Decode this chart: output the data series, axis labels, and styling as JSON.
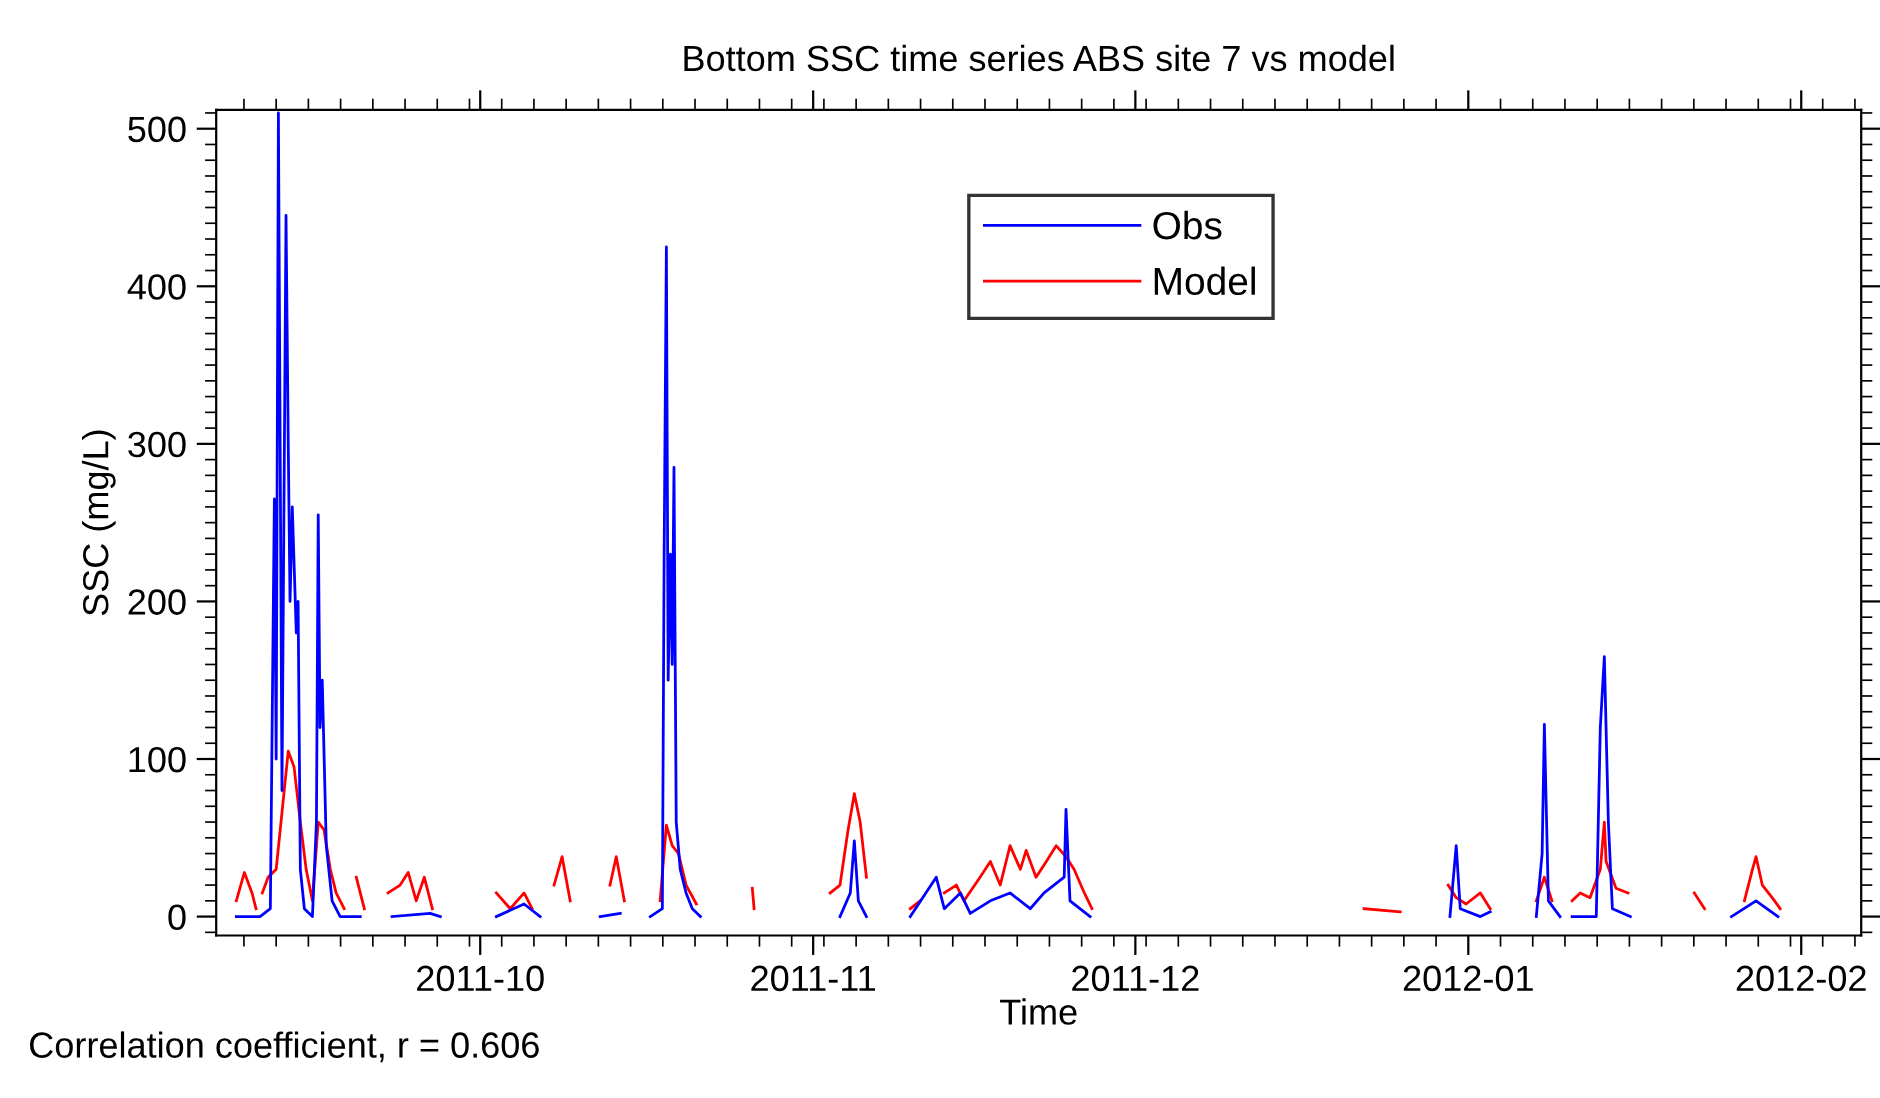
{
  "chart_data": {
    "type": "line",
    "title": "Bottom SSC time series ABS site 7 vs model",
    "xlabel": "Time",
    "ylabel": "SSC (mg/L)",
    "annotations": [
      "Correlation coefficient, r = 0.606"
    ],
    "xlim": [
      "2011-09-06T10:00",
      "2012-02-06T14:00"
    ],
    "xticks": [
      {
        "value": "2011-10-01",
        "label": "2011-10"
      },
      {
        "value": "2011-11-01",
        "label": "2011-11"
      },
      {
        "value": "2011-12-01",
        "label": "2011-12"
      },
      {
        "value": "2012-01-01",
        "label": "2012-01"
      },
      {
        "value": "2012-02-01",
        "label": "2012-02"
      }
    ],
    "ylim": [
      -12,
      512
    ],
    "yticks": [
      0,
      100,
      200,
      300,
      400,
      500
    ],
    "grid": false,
    "legend": "top",
    "marker": "none",
    "line_style": "solid",
    "series": [
      {
        "name": "Obs",
        "color": "#0000ff",
        "x": [
          "2011-09-08T07:00",
          "2011-09-10T12:00",
          "2011-09-11T11:00",
          "2011-09-11T20:00",
          "2011-09-12T00:00",
          "2011-09-12T05:00",
          "2011-09-12T13:00",
          "2011-09-12T22:00",
          "2011-09-13T03:00",
          "2011-09-13T07:00",
          "2011-09-13T12:00",
          "2011-09-13T21:00",
          "2011-09-14T01:00",
          "2011-09-14T06:00",
          "2011-09-14T15:00",
          "2011-09-15T09:00",
          "2011-09-15T18:00",
          "2011-09-15T22:00",
          "2011-09-16T02:00",
          "2011-09-16T07:00",
          "2011-09-16T16:00",
          "2011-09-17T05:00",
          "2011-09-17T23:00",
          "2011-09-19T20:00",
          "2011-09-21T00:00",
          "2011-09-22T19:00",
          "2011-09-26T08:00",
          "2011-09-27T07:00",
          "2011-09-29T00:00",
          "2011-10-02T12:00",
          "2011-10-05T02:00",
          "2011-10-06T14:00",
          "2011-10-09T00:00",
          "2011-10-12T04:00",
          "2011-10-14T01:00",
          "2011-10-15T00:00",
          "2011-10-16T20:00",
          "2011-10-17T23:00",
          "2011-10-18T03:00",
          "2011-10-18T08:00",
          "2011-10-18T12:00",
          "2011-10-18T17:00",
          "2011-10-18T21:00",
          "2011-10-19T01:00",
          "2011-10-19T06:00",
          "2011-10-19T15:00",
          "2011-10-20T04:00",
          "2011-10-20T18:00",
          "2011-10-21T12:00",
          "2011-10-25T00:00",
          "2011-11-03T12:00",
          "2011-11-04T11:00",
          "2011-11-04T20:00",
          "2011-11-05T05:00",
          "2011-11-05T23:00",
          "2011-11-08T00:00",
          "2011-11-10T01:00",
          "2011-11-12T11:00",
          "2011-11-13T05:00",
          "2011-11-14T17:00",
          "2011-11-15T15:00",
          "2011-11-17T12:00",
          "2011-11-19T08:00",
          "2011-11-21T05:00",
          "2011-11-22T12:00",
          "2011-11-24T09:00",
          "2011-11-24T13:00",
          "2011-11-24T22:00",
          "2011-11-26T19:00",
          "2011-12-15T00:00",
          "2011-12-30T07:00",
          "2011-12-30T21:00",
          "2011-12-31T06:00",
          "2012-01-02T03:00",
          "2012-01-03T01:00",
          "2012-01-05T00:00",
          "2012-01-07T08:00",
          "2012-01-07T21:00",
          "2012-01-08T02:00",
          "2012-01-08T11:00",
          "2012-01-09T13:00",
          "2012-01-10T00:00",
          "2012-01-10T16:00",
          "2012-01-12T22:00",
          "2012-01-13T07:00",
          "2012-01-13T16:00",
          "2012-01-14T01:00",
          "2012-01-14T10:00",
          "2012-01-16T02:00",
          "2012-01-20T00:00",
          "2012-01-25T12:00",
          "2012-01-27T19:00",
          "2012-01-29T20:00"
        ],
        "values": [
          0,
          0,
          5,
          265,
          100,
          510,
          80,
          445,
          300,
          200,
          260,
          180,
          200,
          30,
          5,
          0,
          60,
          255,
          120,
          150,
          45,
          10,
          0,
          0,
          null,
          0,
          2,
          0,
          null,
          0,
          8,
          0,
          null,
          0,
          2,
          null,
          0,
          5,
          230,
          425,
          150,
          230,
          160,
          285,
          60,
          30,
          15,
          5,
          0,
          null,
          0,
          15,
          48,
          10,
          0,
          null,
          0,
          25,
          5,
          15,
          2,
          10,
          15,
          5,
          15,
          25,
          68,
          10,
          0,
          null,
          0,
          45,
          5,
          0,
          3,
          null,
          0,
          40,
          122,
          10,
          0,
          null,
          0,
          0,
          120,
          165,
          60,
          5,
          0,
          null,
          0,
          10,
          0
        ]
      },
      {
        "name": "Model",
        "color": "#ff0000",
        "x": [
          "2011-09-08T07:00",
          "2011-09-09T01:00",
          "2011-09-09T18:00",
          "2011-09-10T03:00",
          "2011-09-10T10:00",
          "2011-09-10T17:00",
          "2011-09-11T06:00",
          "2011-09-12T00:00",
          "2011-09-12T18:00",
          "2011-09-13T03:00",
          "2011-09-13T16:00",
          "2011-09-14T06:00",
          "2011-09-14T19:00",
          "2011-09-15T09:00",
          "2011-09-15T22:00",
          "2011-09-16T11:00",
          "2011-09-17T01:00",
          "2011-09-17T14:00",
          "2011-09-18T08:00",
          "2011-09-19T00:00",
          "2011-09-19T11:00",
          "2011-09-20T05:00",
          "2011-09-21T00:00",
          "2011-09-22T10:00",
          "2011-09-23T13:00",
          "2011-09-24T07:00",
          "2011-09-25T01:00",
          "2011-09-25T19:00",
          "2011-09-26T13:00",
          "2011-09-29T00:00",
          "2011-10-02T12:00",
          "2011-10-03T19:00",
          "2011-10-05T02:00",
          "2011-10-05T20:00",
          "2011-10-07T00:00",
          "2011-10-07T21:00",
          "2011-10-08T15:00",
          "2011-10-09T09:00",
          "2011-10-11T00:00",
          "2011-10-13T02:00",
          "2011-10-13T16:00",
          "2011-10-14T10:00",
          "2011-10-16T00:00",
          "2011-10-17T18:00",
          "2011-10-18T08:00",
          "2011-10-18T21:00",
          "2011-10-19T11:00",
          "2011-10-20T04:00",
          "2011-10-21T03:00",
          "2011-10-24T00:00",
          "2011-10-26T08:00",
          "2011-10-26T12:00",
          "2011-10-30T00:00",
          "2011-11-02T14:00",
          "2011-11-03T12:00",
          "2011-11-04T06:00",
          "2011-11-04T20:00",
          "2011-11-05T09:00",
          "2011-11-05T23:00",
          "2011-11-08T00:00",
          "2011-11-10T01:00",
          "2011-11-10T23:00",
          "2011-11-12T00:00",
          "2011-11-13T05:00",
          "2011-11-14T08:00",
          "2011-11-15T01:00",
          "2011-11-16T13:00",
          "2011-11-17T12:00",
          "2011-11-18T10:00",
          "2011-11-19T08:00",
          "2011-11-20T07:00",
          "2011-11-20T20:00",
          "2011-11-21T18:00",
          "2011-11-22T17:00",
          "2011-11-23T15:00",
          "2011-11-24T13:00",
          "2011-11-25T07:00",
          "2011-11-26T06:00",
          "2011-11-26T23:00",
          "2011-12-10T00:00",
          "2011-12-22T07:00",
          "2011-12-25T16:00",
          "2011-12-28T00:00",
          "2011-12-30T03:00",
          "2011-12-30T21:00",
          "2011-12-31T19:00",
          "2012-01-02T03:00",
          "2012-01-03T01:00",
          "2012-01-05T00:00",
          "2012-01-07T08:00",
          "2012-01-08T02:00",
          "2012-01-08T19:00",
          "2012-01-09T12:00",
          "2012-01-10T16:00",
          "2012-01-11T10:00",
          "2012-01-12T08:00",
          "2012-01-13T07:00",
          "2012-01-13T16:00",
          "2012-01-13T20:00",
          "2012-01-14T18:00",
          "2012-01-15T21:00",
          "2012-01-19T00:00",
          "2012-01-22T01:00",
          "2012-01-23T00:00",
          "2012-01-25T00:00",
          "2012-01-26T17:00",
          "2012-01-27T11:00",
          "2012-01-27T19:00",
          "2012-01-28T09:00",
          "2012-01-29T07:00",
          "2012-01-30T01:00"
        ],
        "values": [
          10,
          28,
          15,
          5,
          null,
          15,
          25,
          30,
          80,
          105,
          95,
          60,
          30,
          10,
          60,
          55,
          30,
          15,
          5,
          null,
          25,
          5,
          null,
          15,
          20,
          28,
          10,
          25,
          5,
          null,
          15,
          5,
          15,
          5,
          null,
          20,
          38,
          10,
          null,
          20,
          38,
          10,
          null,
          10,
          58,
          45,
          40,
          20,
          8,
          null,
          18,
          5,
          null,
          15,
          20,
          55,
          78,
          60,
          25,
          null,
          5,
          10,
          null,
          15,
          20,
          10,
          25,
          35,
          20,
          45,
          30,
          42,
          25,
          35,
          45,
          38,
          30,
          15,
          5,
          null,
          5,
          3,
          null,
          20,
          12,
          8,
          15,
          5,
          null,
          10,
          25,
          10,
          null,
          10,
          15,
          12,
          30,
          60,
          35,
          18,
          15,
          null,
          15,
          5,
          null,
          10,
          30,
          38,
          20,
          12,
          5
        ]
      }
    ]
  }
}
